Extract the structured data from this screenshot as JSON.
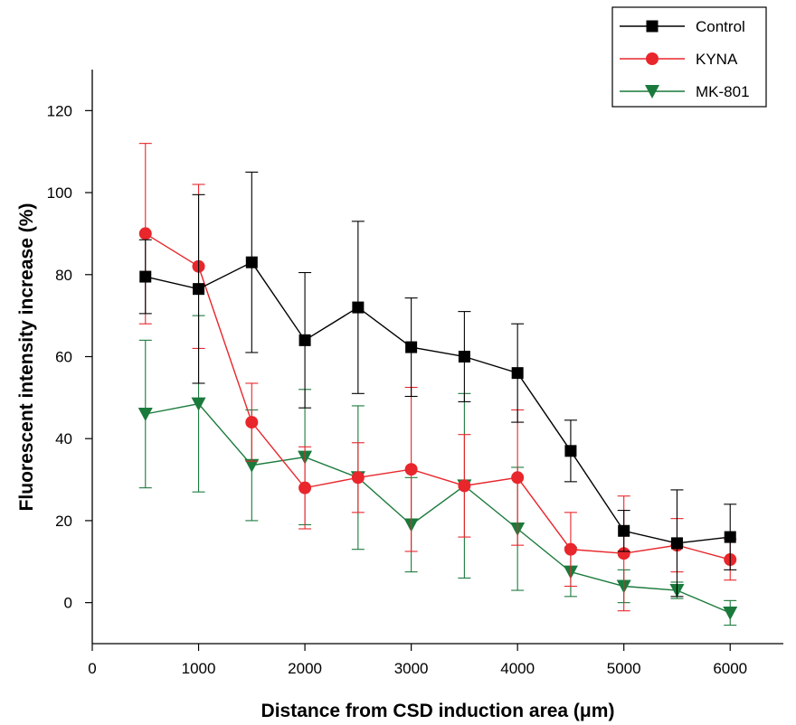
{
  "chart_data": {
    "type": "line",
    "title": "",
    "xlabel": "Distance from CSD induction area (μm)",
    "ylabel": "Fluorescent intensity increase (%)",
    "xlim": [
      0,
      6500
    ],
    "ylim": [
      -10,
      130
    ],
    "xticks": [
      0,
      1000,
      2000,
      3000,
      4000,
      5000,
      6000
    ],
    "yticks": [
      0,
      20,
      40,
      60,
      80,
      100,
      120
    ],
    "x": [
      500,
      1000,
      1500,
      2000,
      2500,
      3000,
      3500,
      4000,
      4500,
      5000,
      5500,
      6000
    ],
    "legend_position": "top-right",
    "grid": false,
    "series": [
      {
        "name": "Control",
        "color": "#000000",
        "marker": "square",
        "values": [
          79.5,
          76.5,
          83,
          64,
          72,
          62.3,
          60,
          56,
          37,
          17.5,
          14.5,
          16
        ],
        "errors": [
          9,
          23,
          22,
          16.5,
          21,
          12,
          11,
          12,
          7.5,
          5,
          13,
          8
        ]
      },
      {
        "name": "KYNA",
        "color": "#e8262b",
        "marker": "circle",
        "values": [
          90,
          82,
          44,
          28,
          30.5,
          32.5,
          28.5,
          30.5,
          13,
          12,
          14,
          10.5
        ],
        "errors": [
          22,
          20,
          9.5,
          10,
          8.5,
          20,
          12.5,
          16.5,
          9,
          14,
          6.5,
          5
        ]
      },
      {
        "name": "MK-801",
        "color": "#1a7a3c",
        "marker": "triangle-down",
        "values": [
          46,
          48.5,
          33.5,
          35.5,
          30.5,
          19,
          28.5,
          18,
          7.5,
          4,
          3,
          -2.5
        ],
        "errors": [
          18,
          21.5,
          13.5,
          16.5,
          17.5,
          11.5,
          22.5,
          15,
          6,
          4,
          2,
          3
        ]
      }
    ]
  }
}
